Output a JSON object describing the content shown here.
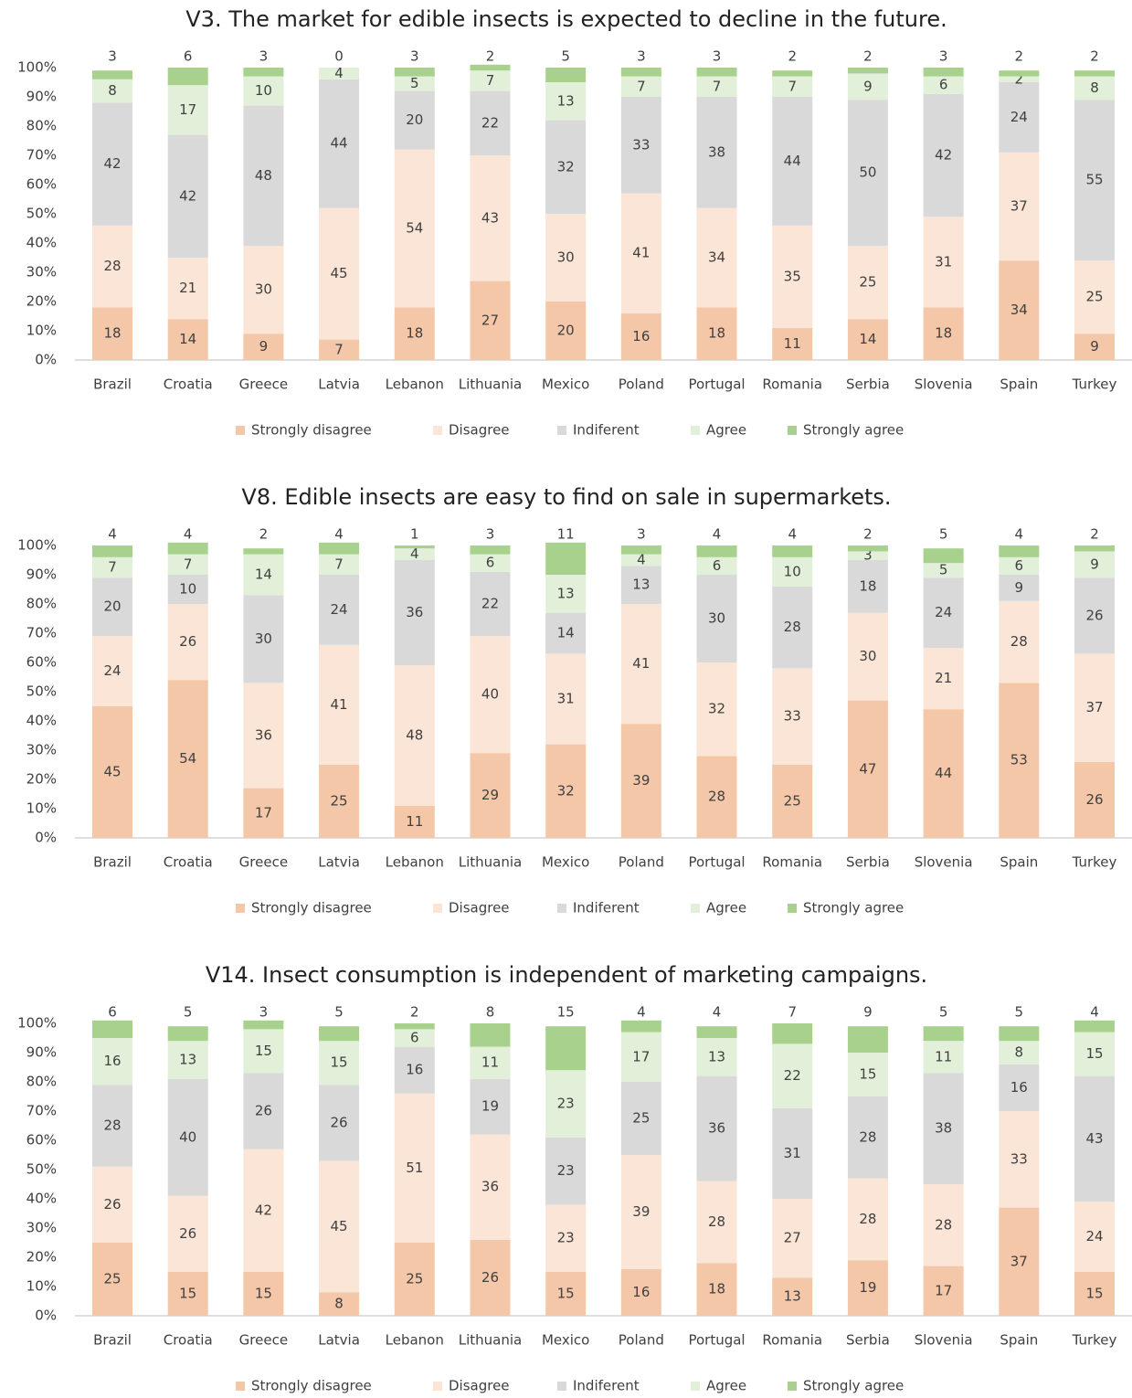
{
  "chart_data": [
    {
      "type": "bar",
      "stacked": true,
      "title": "V3. The market for edible insects is expected to decline in the future.",
      "categories": [
        "Brazil",
        "Croatia",
        "Greece",
        "Latvia",
        "Lebanon",
        "Lithuania",
        "Mexico",
        "Poland",
        "Portugal",
        "Romania",
        "Serbia",
        "Slovenia",
        "Spain",
        "Turkey"
      ],
      "series": [
        {
          "name": "Strongly disagree",
          "color": "#f4c7a8",
          "values": [
            18,
            14,
            9,
            7,
            18,
            27,
            20,
            16,
            18,
            11,
            14,
            18,
            34,
            9
          ]
        },
        {
          "name": "Disagree",
          "color": "#fbe5d6",
          "values": [
            28,
            21,
            30,
            45,
            54,
            43,
            30,
            41,
            34,
            35,
            25,
            31,
            37,
            25
          ]
        },
        {
          "name": "Indiferent",
          "color": "#d9d9d9",
          "values": [
            42,
            42,
            48,
            44,
            20,
            22,
            32,
            33,
            38,
            44,
            50,
            42,
            24,
            55
          ]
        },
        {
          "name": "Agree",
          "color": "#e2f0d9",
          "values": [
            8,
            17,
            10,
            4,
            5,
            7,
            13,
            7,
            7,
            7,
            9,
            6,
            2,
            8
          ]
        },
        {
          "name": "Strongly agree",
          "color": "#a9d18e",
          "values": [
            3,
            6,
            3,
            0,
            3,
            2,
            5,
            3,
            3,
            2,
            2,
            3,
            2,
            2
          ]
        }
      ],
      "ylim": [
        0,
        100
      ],
      "yticks": [
        {
          "value": 0,
          "label": "0%"
        },
        {
          "value": 10,
          "label": "10%"
        },
        {
          "value": 20,
          "label": "20%"
        },
        {
          "value": 30,
          "label": "30%"
        },
        {
          "value": 40,
          "label": "40%"
        },
        {
          "value": 50,
          "label": "50%"
        },
        {
          "value": 60,
          "label": "60%"
        },
        {
          "value": 70,
          "label": "70%"
        },
        {
          "value": 80,
          "label": "80%"
        },
        {
          "value": 90,
          "label": "90%"
        },
        {
          "value": 100,
          "label": "100%"
        }
      ],
      "legend": "bottom"
    },
    {
      "type": "bar",
      "stacked": true,
      "title": "V8. Edible insects are easy to find on sale in supermarkets.",
      "categories": [
        "Brazil",
        "Croatia",
        "Greece",
        "Latvia",
        "Lebanon",
        "Lithuania",
        "Mexico",
        "Poland",
        "Portugal",
        "Romania",
        "Serbia",
        "Slovenia",
        "Spain",
        "Turkey"
      ],
      "series": [
        {
          "name": "Strongly disagree",
          "color": "#f4c7a8",
          "values": [
            45,
            54,
            17,
            25,
            11,
            29,
            32,
            39,
            28,
            25,
            47,
            44,
            53,
            26
          ]
        },
        {
          "name": "Disagree",
          "color": "#fbe5d6",
          "values": [
            24,
            26,
            36,
            41,
            48,
            40,
            31,
            41,
            32,
            33,
            30,
            21,
            28,
            37
          ]
        },
        {
          "name": "Indiferent",
          "color": "#d9d9d9",
          "values": [
            20,
            10,
            30,
            24,
            36,
            22,
            14,
            13,
            30,
            28,
            18,
            24,
            9,
            26
          ]
        },
        {
          "name": "Agree",
          "color": "#e2f0d9",
          "values": [
            7,
            7,
            14,
            7,
            4,
            6,
            13,
            4,
            6,
            10,
            3,
            5,
            6,
            9
          ]
        },
        {
          "name": "Strongly agree",
          "color": "#a9d18e",
          "values": [
            4,
            4,
            2,
            4,
            1,
            3,
            11,
            3,
            4,
            4,
            2,
            5,
            4,
            2
          ]
        }
      ],
      "ylim": [
        0,
        100
      ],
      "yticks": [
        {
          "value": 0,
          "label": "0%"
        },
        {
          "value": 10,
          "label": "10%"
        },
        {
          "value": 20,
          "label": "20%"
        },
        {
          "value": 30,
          "label": "30%"
        },
        {
          "value": 40,
          "label": "40%"
        },
        {
          "value": 50,
          "label": "50%"
        },
        {
          "value": 60,
          "label": "60%"
        },
        {
          "value": 70,
          "label": "70%"
        },
        {
          "value": 80,
          "label": "80%"
        },
        {
          "value": 90,
          "label": "90%"
        },
        {
          "value": 100,
          "label": "100%"
        }
      ],
      "legend": "bottom"
    },
    {
      "type": "bar",
      "stacked": true,
      "title": "V14. Insect consumption is independent of marketing campaigns.",
      "categories": [
        "Brazil",
        "Croatia",
        "Greece",
        "Latvia",
        "Lebanon",
        "Lithuania",
        "Mexico",
        "Poland",
        "Portugal",
        "Romania",
        "Serbia",
        "Slovenia",
        "Spain",
        "Turkey"
      ],
      "series": [
        {
          "name": "Strongly disagree",
          "color": "#f4c7a8",
          "values": [
            25,
            15,
            15,
            8,
            25,
            26,
            15,
            16,
            18,
            13,
            19,
            17,
            37,
            15
          ]
        },
        {
          "name": "Disagree",
          "color": "#fbe5d6",
          "values": [
            26,
            26,
            42,
            45,
            51,
            36,
            23,
            39,
            28,
            27,
            28,
            28,
            33,
            24
          ]
        },
        {
          "name": "Indiferent",
          "color": "#d9d9d9",
          "values": [
            28,
            40,
            26,
            26,
            16,
            19,
            23,
            25,
            36,
            31,
            28,
            38,
            16,
            43
          ]
        },
        {
          "name": "Agree",
          "color": "#e2f0d9",
          "values": [
            16,
            13,
            15,
            15,
            6,
            11,
            23,
            17,
            13,
            22,
            15,
            11,
            8,
            15
          ]
        },
        {
          "name": "Strongly agree",
          "color": "#a9d18e",
          "values": [
            6,
            5,
            3,
            5,
            2,
            8,
            15,
            4,
            4,
            7,
            9,
            5,
            5,
            4
          ]
        }
      ],
      "ylim": [
        0,
        100
      ],
      "yticks": [
        {
          "value": 0,
          "label": "0%"
        },
        {
          "value": 10,
          "label": "10%"
        },
        {
          "value": 20,
          "label": "20%"
        },
        {
          "value": 30,
          "label": "30%"
        },
        {
          "value": 40,
          "label": "40%"
        },
        {
          "value": 50,
          "label": "50%"
        },
        {
          "value": 60,
          "label": "60%"
        },
        {
          "value": 70,
          "label": "70%"
        },
        {
          "value": 80,
          "label": "80%"
        },
        {
          "value": 90,
          "label": "90%"
        },
        {
          "value": 100,
          "label": "100%"
        }
      ],
      "legend": "bottom"
    }
  ]
}
